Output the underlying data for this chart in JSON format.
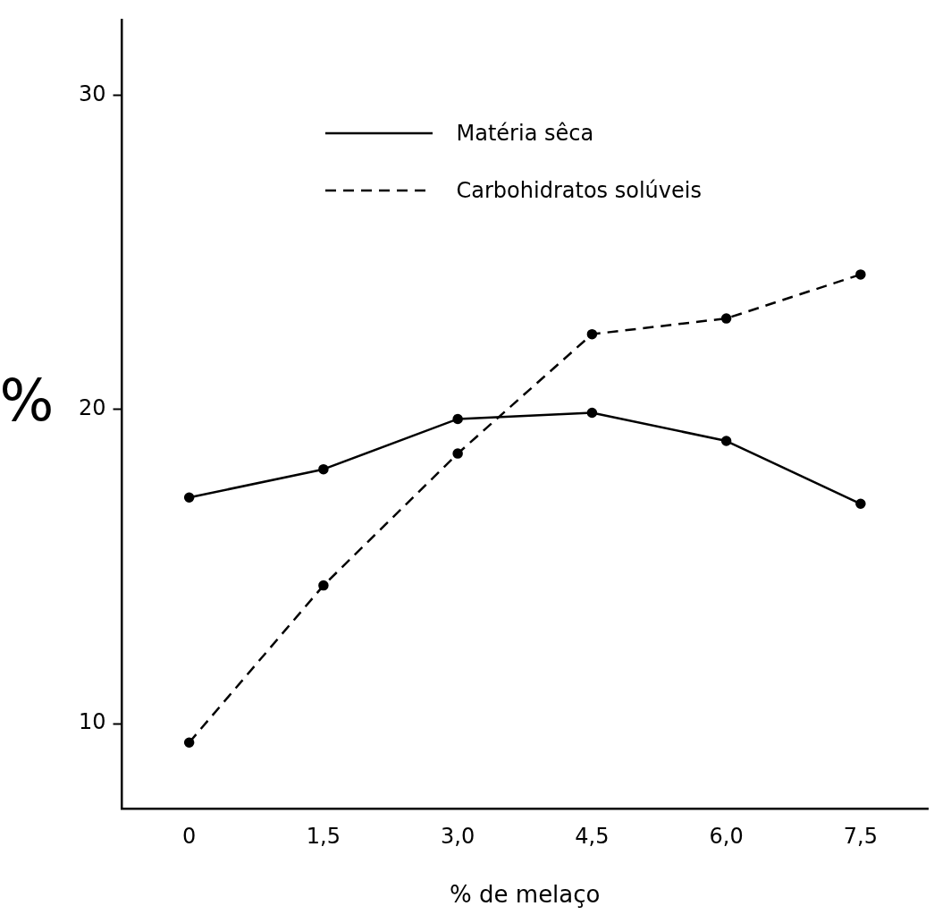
{
  "chart_data": {
    "type": "line",
    "xlabel": "% de melaço",
    "ylabel": "%",
    "categories": [
      "0",
      "1,5",
      "3,0",
      "4,5",
      "6,0",
      "7,5"
    ],
    "series": [
      {
        "name": "Matéria sêca",
        "color": "#000000",
        "line_style": "solid",
        "values": [
          17.2,
          18.1,
          19.7,
          19.9,
          19.0,
          17.0
        ]
      },
      {
        "name": "Carbohidratos solúveis",
        "color": "#000000",
        "line_style": "dashed",
        "values": [
          9.4,
          14.4,
          18.6,
          22.4,
          22.9,
          24.3
        ]
      }
    ],
    "ylim": [
      7.3,
      32.4
    ],
    "yticks": [
      10,
      20,
      30
    ],
    "grid": false,
    "legend": "top",
    "marker": "circle"
  }
}
